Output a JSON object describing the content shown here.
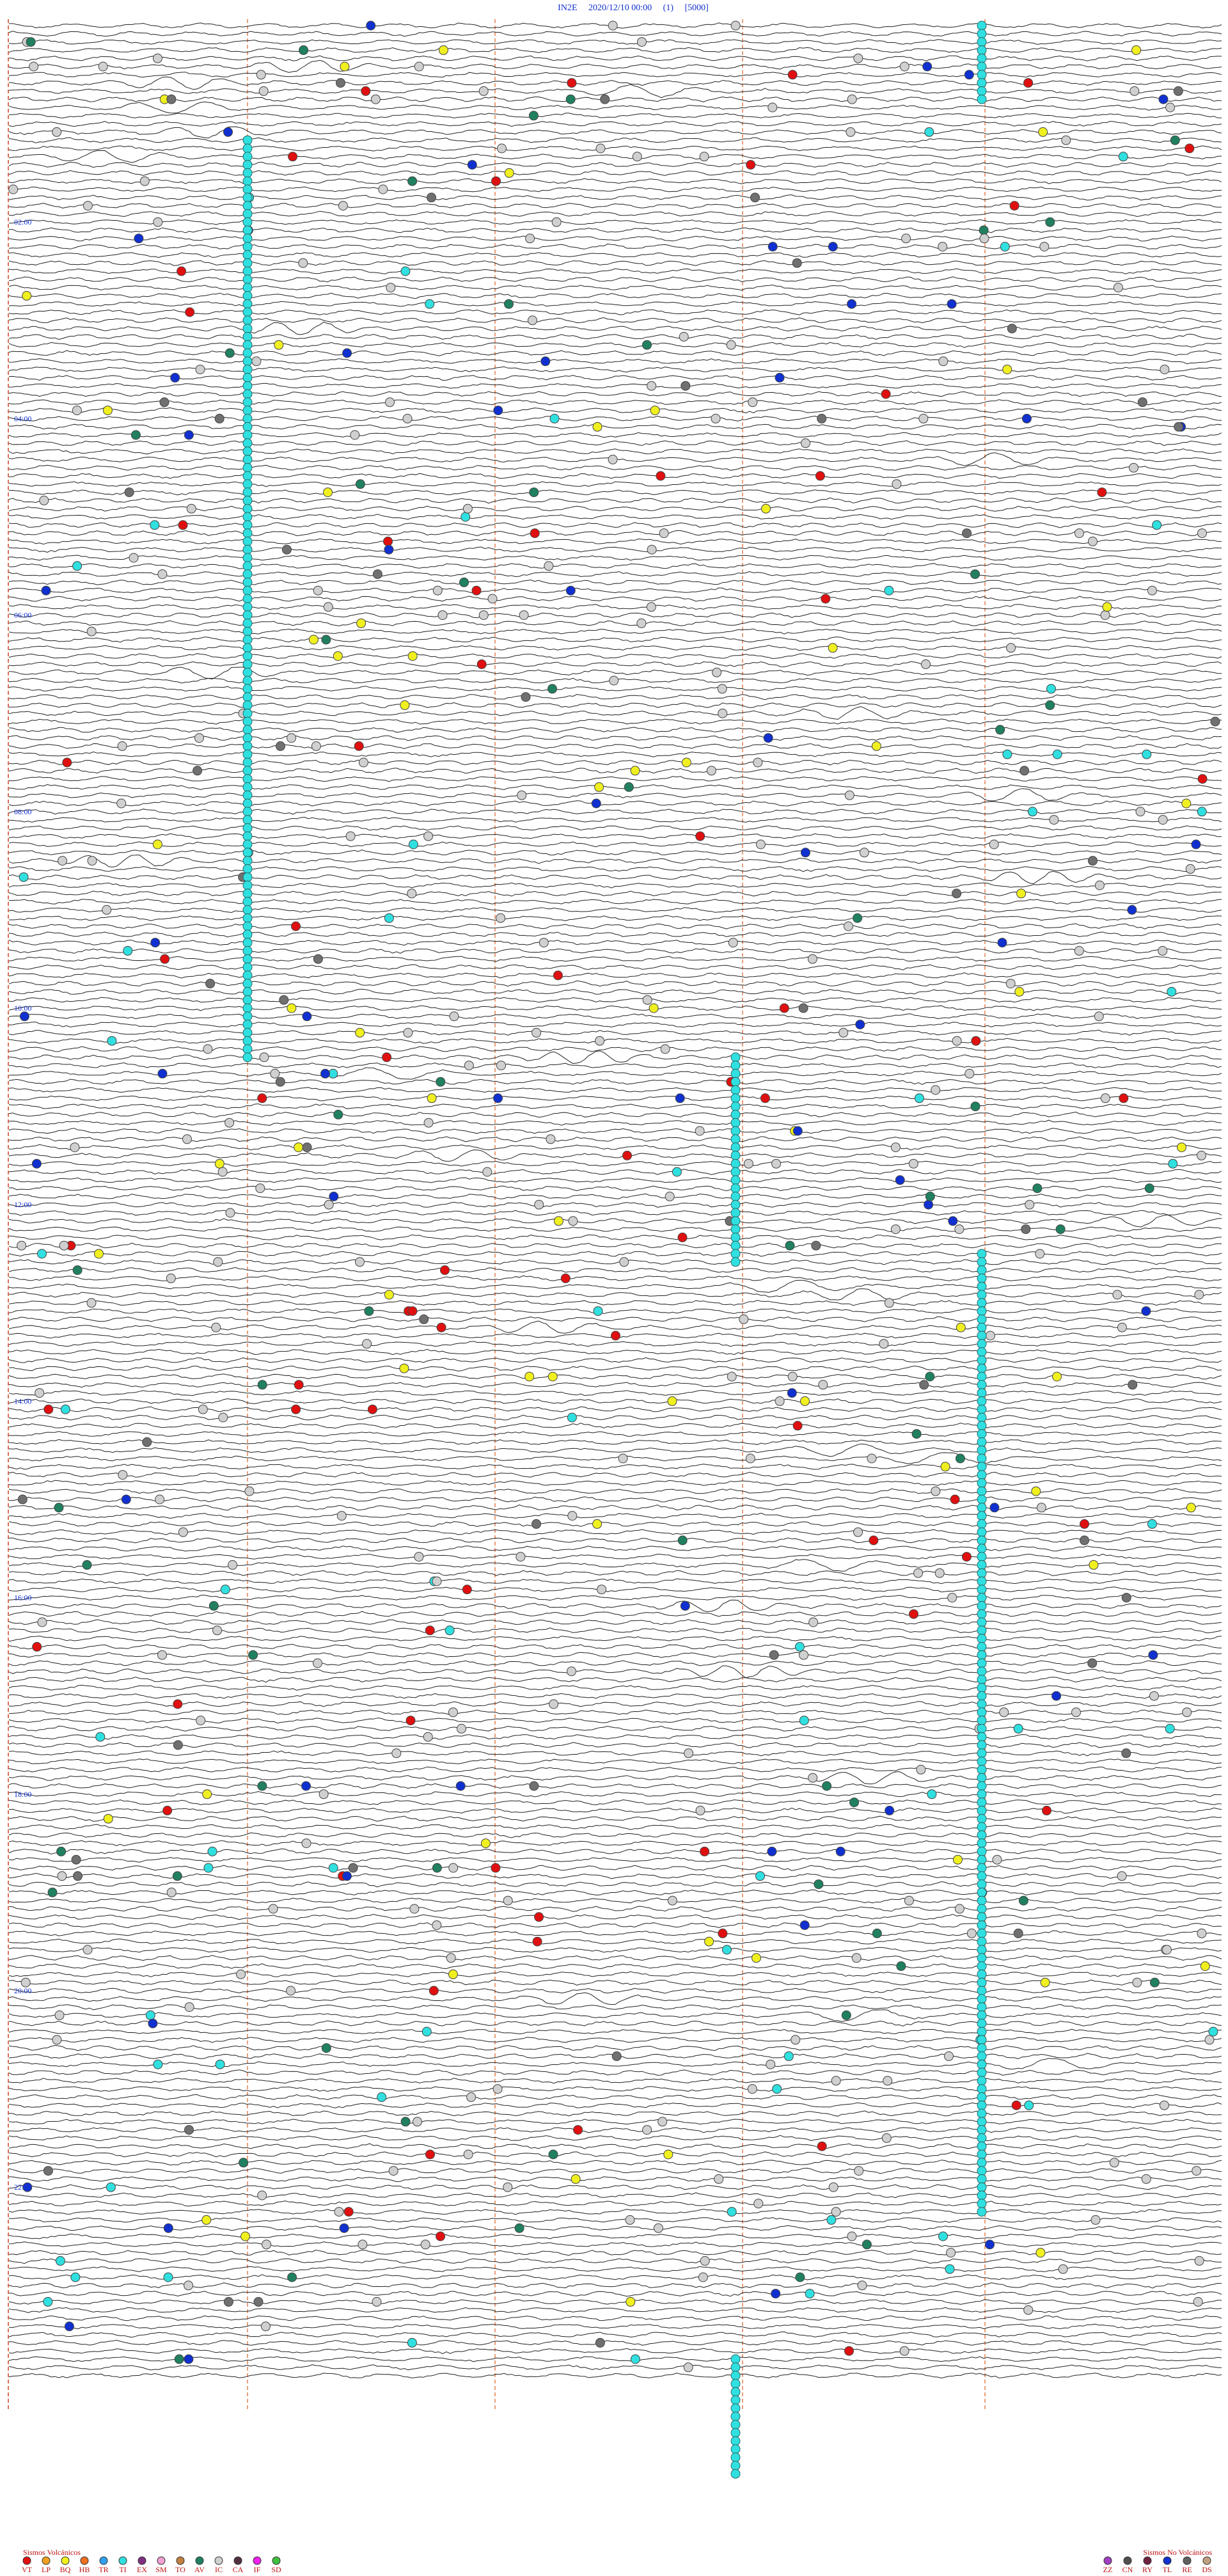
{
  "header": {
    "title": "IN2E     2020/12/10 00:00     (1)     [5000]"
  },
  "time_labels": [
    "02:00",
    "04:00",
    "06:00",
    "08:00",
    "10:00",
    "12:00",
    "14:00",
    "16:00",
    "18:00",
    "20:00",
    "22:00"
  ],
  "legend_volcanic": {
    "title": "Sismos Volcánicos",
    "items": [
      {
        "label": "VT",
        "color": "#e01010"
      },
      {
        "label": "LP",
        "color": "#f0a020"
      },
      {
        "label": "BQ",
        "color": "#f0f020"
      },
      {
        "label": "HB",
        "color": "#f07020"
      },
      {
        "label": "TR",
        "color": "#30a0f0"
      },
      {
        "label": "TI",
        "color": "#30e0e0"
      },
      {
        "label": "EX",
        "color": "#803080"
      },
      {
        "label": "SM",
        "color": "#f0a0d0"
      },
      {
        "label": "TO",
        "color": "#c08040"
      },
      {
        "label": "AV",
        "color": "#208060"
      },
      {
        "label": "IC",
        "color": "#d0d0d0"
      },
      {
        "label": "CA",
        "color": "#503040"
      },
      {
        "label": "IF",
        "color": "#f020f0"
      },
      {
        "label": "SD",
        "color": "#40c040"
      }
    ]
  },
  "legend_nonvolcanic": {
    "title": "Sismos No Volcánicos",
    "items": [
      {
        "label": "ZZ",
        "color": "#a040c0"
      },
      {
        "label": "CN",
        "color": "#505050"
      },
      {
        "label": "RY",
        "color": "#702040"
      },
      {
        "label": "TL",
        "color": "#1030d0"
      },
      {
        "label": "RE",
        "color": "#606060"
      },
      {
        "label": "DS",
        "color": "#c0a080"
      }
    ]
  }
}
